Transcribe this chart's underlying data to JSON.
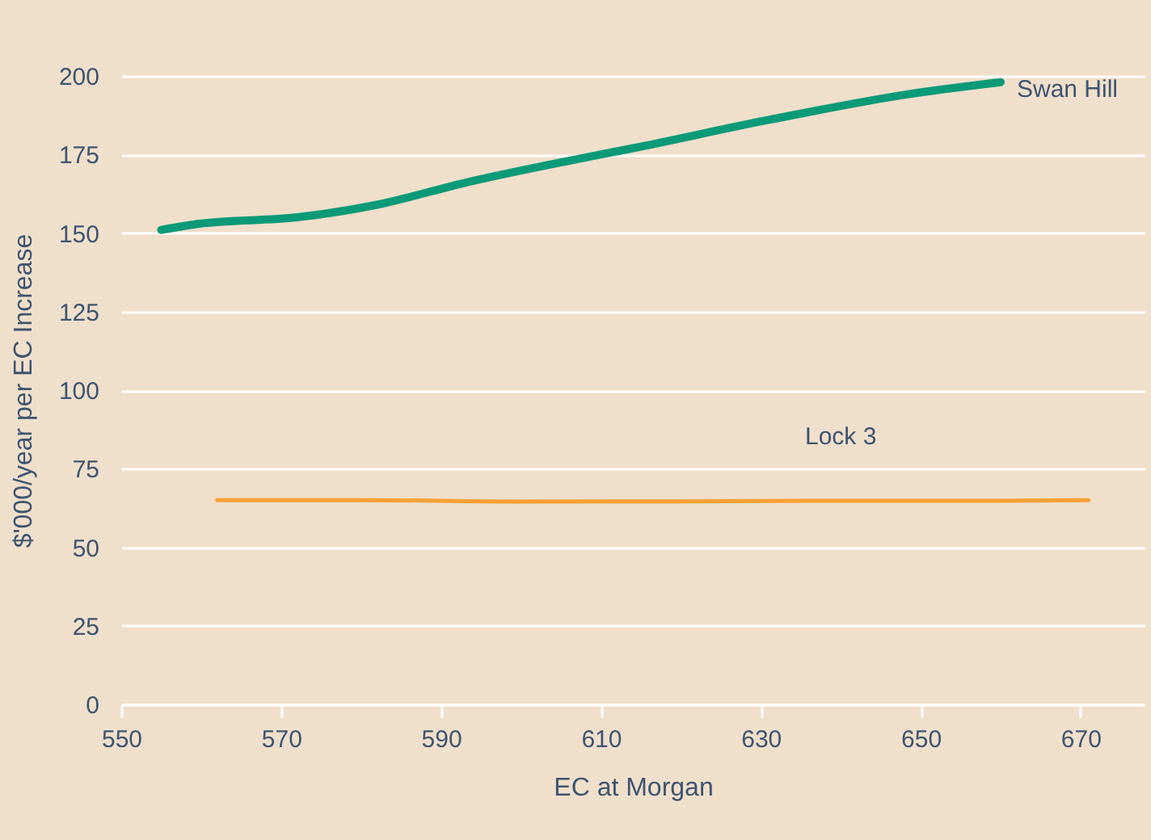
{
  "chart_data": {
    "type": "line",
    "xlabel": "EC at Morgan",
    "ylabel": "$'000/year per EC Increase",
    "xlim": [
      550,
      678
    ],
    "xticks": [
      550,
      570,
      590,
      610,
      630,
      650,
      670
    ],
    "ylim": [
      0,
      200
    ],
    "yticks": [
      0,
      25,
      50,
      75,
      100,
      125,
      150,
      175,
      200
    ],
    "grid": "y",
    "legend": false,
    "series": [
      {
        "name": "Swan Hill",
        "color": "#0a9a78",
        "x": [
          555,
          560,
          572,
          582,
          593,
          606,
          614,
          631,
          648,
          660
        ],
        "values": [
          151,
          153,
          155,
          159,
          166,
          173,
          177,
          186,
          194,
          198
        ]
      },
      {
        "name": "Lock 3",
        "color": "#f7a035",
        "x": [
          562,
          580,
          600,
          620,
          640,
          660,
          671
        ],
        "values": [
          65,
          65,
          64.5,
          64.6,
          64.8,
          64.8,
          65
        ]
      }
    ]
  }
}
